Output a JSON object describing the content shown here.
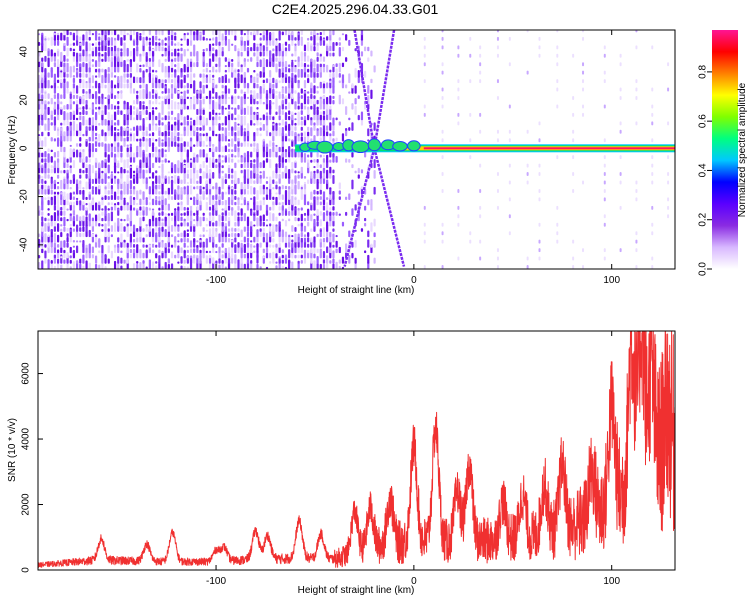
{
  "title": "C2E4.2025.296.04.33.G01",
  "chart_data": [
    {
      "type": "heatmap",
      "xlabel": "Height of straight line (km)",
      "ylabel": "Frequency (Hz)",
      "xlim": [
        -190,
        132
      ],
      "ylim": [
        -50,
        49
      ],
      "xticks": [
        "-100",
        "0",
        "100"
      ],
      "xtick_values": [
        -100,
        0,
        100
      ],
      "yticks": [
        "-40",
        "-20",
        "0",
        "20",
        "40"
      ],
      "ytick_values": [
        -40,
        -20,
        0,
        20,
        40
      ],
      "colorbar": {
        "label": "Normalized spectral amplitude",
        "range": [
          0.0,
          0.97
        ],
        "ticks": [
          "0.0",
          "0.2",
          "0.4",
          "0.6",
          "0.8"
        ],
        "tick_values": [
          0.0,
          0.2,
          0.4,
          0.6,
          0.8
        ],
        "colors": [
          "#ffffff",
          "#d8b8ff",
          "#8a2be2",
          "#5a00ff",
          "#0000ff",
          "#00c8ff",
          "#00ff80",
          "#80ff00",
          "#ffff00",
          "#ff8000",
          "#ff0000",
          "#ff1493"
        ]
      },
      "ridge": {
        "frequency_hz": 0,
        "x_start": -60,
        "x_end": 132,
        "amplitude": 0.95
      },
      "cross_lines": [
        {
          "x_from": -30,
          "f_from": 49,
          "x_to": -20,
          "f_to": 0
        },
        {
          "x_from": -20,
          "f_from": 0,
          "x_to": -5,
          "f_to": -49
        },
        {
          "x_from": -10,
          "f_from": 49,
          "x_to": -20,
          "f_to": 0
        },
        {
          "x_from": -20,
          "f_from": 0,
          "x_to": -35,
          "f_to": -49
        }
      ],
      "noise_region": {
        "x_from": -190,
        "x_to": -40,
        "amplitude": 0.2
      }
    },
    {
      "type": "line",
      "xlabel": "Height of straight line (km)",
      "ylabel": "SNR (10 * v/v)",
      "xlim": [
        -190,
        132
      ],
      "ylim": [
        0,
        7300
      ],
      "xticks": [
        "-100",
        "0",
        "100"
      ],
      "xtick_values": [
        -100,
        0,
        100
      ],
      "yticks": [
        "0",
        "2000",
        "4000",
        "6000"
      ],
      "ytick_values": [
        0,
        2000,
        4000,
        6000
      ],
      "color": "#f03030",
      "series_points": [
        {
          "x": -190,
          "y": 150
        },
        {
          "x": -160,
          "y": 300
        },
        {
          "x": -130,
          "y": 260
        },
        {
          "x": -100,
          "y": 250
        },
        {
          "x": -80,
          "y": 330
        },
        {
          "x": -60,
          "y": 350
        },
        {
          "x": -40,
          "y": 340
        },
        {
          "x": -20,
          "y": 700
        },
        {
          "x": 0,
          "y": 900
        },
        {
          "x": 20,
          "y": 850
        },
        {
          "x": 40,
          "y": 900
        },
        {
          "x": 60,
          "y": 1000
        },
        {
          "x": 80,
          "y": 1300
        },
        {
          "x": 100,
          "y": 2000
        },
        {
          "x": 120,
          "y": 3200
        },
        {
          "x": 132,
          "y": 4000
        }
      ],
      "peaks": [
        {
          "x": -158,
          "y": 950
        },
        {
          "x": -135,
          "y": 800
        },
        {
          "x": -122,
          "y": 1150
        },
        {
          "x": -100,
          "y": 600
        },
        {
          "x": -96,
          "y": 700
        },
        {
          "x": -80,
          "y": 1200
        },
        {
          "x": -74,
          "y": 1050
        },
        {
          "x": -58,
          "y": 1500
        },
        {
          "x": -47,
          "y": 1100
        },
        {
          "x": -30,
          "y": 1800
        },
        {
          "x": -22,
          "y": 1900
        },
        {
          "x": -12,
          "y": 2200
        },
        {
          "x": 0,
          "y": 3800
        },
        {
          "x": 11,
          "y": 4350
        },
        {
          "x": 22,
          "y": 2400
        },
        {
          "x": 28,
          "y": 3200
        },
        {
          "x": 45,
          "y": 2100
        },
        {
          "x": 55,
          "y": 2300
        },
        {
          "x": 66,
          "y": 2600
        },
        {
          "x": 75,
          "y": 3200
        },
        {
          "x": 90,
          "y": 3000
        },
        {
          "x": 100,
          "y": 5000
        },
        {
          "x": 110,
          "y": 6800
        },
        {
          "x": 115,
          "y": 7300
        },
        {
          "x": 120,
          "y": 6000
        },
        {
          "x": 128,
          "y": 5000
        }
      ]
    }
  ]
}
